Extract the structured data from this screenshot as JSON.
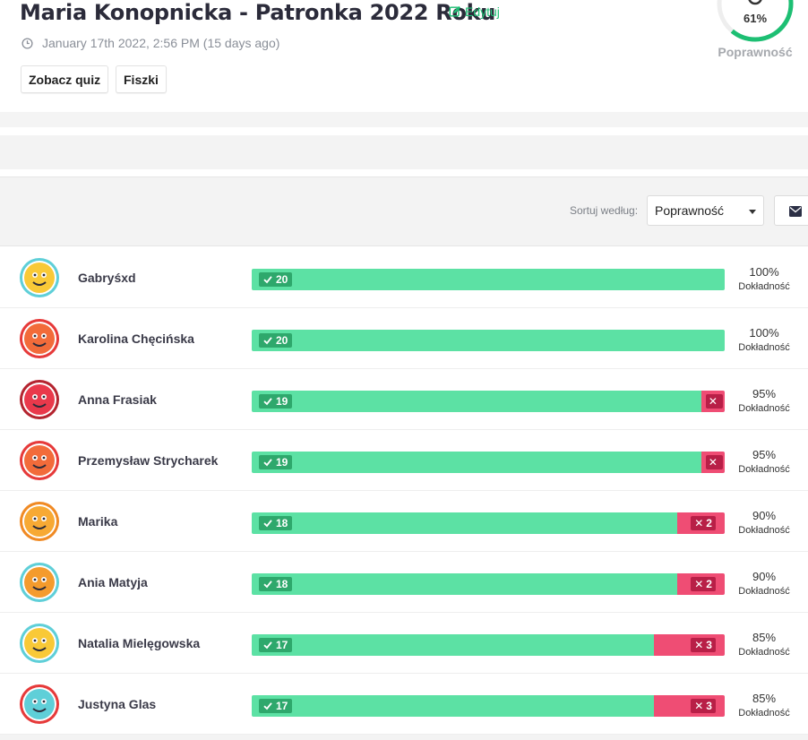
{
  "quiz": {
    "title": "Maria Konopnicka - Patronka 2022 Roku",
    "edit_label": "Edytuj",
    "date": "January 17th 2022, 2:56 PM (15 days ago)",
    "buttons": {
      "view_quiz": "Zobacz quiz",
      "flashcards": "Fiszki"
    },
    "accuracy": {
      "value": "61%",
      "fraction": 0.61,
      "label": "Poprawność",
      "color": "#1dbf73"
    }
  },
  "toolbar": {
    "sort_label": "Sortuj według:",
    "sort_value": "Poprawność",
    "mail_icon": "envelope-icon"
  },
  "colors": {
    "correct": "#5ce1a4",
    "incorrect": "#ef4d74",
    "accent": "#1dbf73"
  },
  "players": [
    {
      "name": "Gabryśxd",
      "correct": 20,
      "incorrect": 0,
      "correct_label": "20",
      "incorrect_label": "",
      "accuracy": "100%",
      "accuracy_label": "Dokładność",
      "avatar": "rainbow-avatar-icon",
      "avatar_bg": "#f9c937",
      "avatar_ring": "#5fcfd8"
    },
    {
      "name": "Karolina Chęcińska",
      "correct": 20,
      "incorrect": 0,
      "correct_label": "20",
      "incorrect_label": "",
      "accuracy": "100%",
      "accuracy_label": "Dokładność",
      "avatar": "dinosaur-avatar-icon",
      "avatar_bg": "#f26b3a",
      "avatar_ring": "#e63a3a"
    },
    {
      "name": "Anna Frasiak",
      "correct": 19,
      "incorrect": 1,
      "correct_label": "19",
      "incorrect_label": "",
      "accuracy": "95%",
      "accuracy_label": "Dokładność",
      "avatar": "zombie-avatar-icon",
      "avatar_bg": "#e9394b",
      "avatar_ring": "#b4242f"
    },
    {
      "name": "Przemysław Strycharek",
      "correct": 19,
      "incorrect": 1,
      "correct_label": "19",
      "incorrect_label": "",
      "accuracy": "95%",
      "accuracy_label": "Dokładność",
      "avatar": "dinosaur-avatar-icon",
      "avatar_bg": "#f26b3a",
      "avatar_ring": "#e63a3a"
    },
    {
      "name": "Marika",
      "correct": 18,
      "incorrect": 2,
      "correct_label": "18",
      "incorrect_label": "2",
      "accuracy": "90%",
      "accuracy_label": "Dokładność",
      "avatar": "guitar-avatar-icon",
      "avatar_bg": "#f7a934",
      "avatar_ring": "#f08a24"
    },
    {
      "name": "Ania Matyja",
      "correct": 18,
      "incorrect": 2,
      "correct_label": "18",
      "incorrect_label": "2",
      "accuracy": "90%",
      "accuracy_label": "Dokładność",
      "avatar": "cat-avatar-icon",
      "avatar_bg": "#f49b2d",
      "avatar_ring": "#5fcfd8"
    },
    {
      "name": "Natalia Mielęgowska",
      "correct": 17,
      "incorrect": 3,
      "correct_label": "17",
      "incorrect_label": "3",
      "accuracy": "85%",
      "accuracy_label": "Dokładność",
      "avatar": "rainbow-avatar-icon",
      "avatar_bg": "#f9c937",
      "avatar_ring": "#5fcfd8"
    },
    {
      "name": "Justyna Glas",
      "correct": 17,
      "incorrect": 3,
      "correct_label": "17",
      "incorrect_label": "3",
      "accuracy": "85%",
      "accuracy_label": "Dokładność",
      "avatar": "bottle-avatar-icon",
      "avatar_bg": "#5fcfd8",
      "avatar_ring": "#e63a3a"
    }
  ]
}
